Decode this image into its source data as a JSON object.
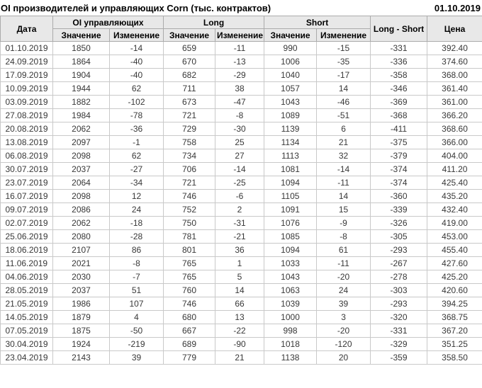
{
  "header": {
    "title": "OI производителей и управляющих Corn (тыс. контрактов)",
    "report_date": "01.10.2019"
  },
  "colors": {
    "positive_change": "#008000",
    "negative_change": "#cc0000",
    "header_background": "#e8e8e8",
    "cell_border": "#c9c9c9",
    "header_border": "#ababab",
    "value_text": "#383838"
  },
  "chart_data": {
    "type": "table",
    "title": "OI производителей и управляющих Corn (тыс. контрактов)",
    "columns": {
      "date": "Дата",
      "oi_group": "OI управляющих",
      "long_group": "Long",
      "short_group": "Short",
      "long_short": "Long - Short",
      "price": "Цена",
      "value": "Значение",
      "change": "Изменение"
    },
    "rows": [
      {
        "date": "01.10.2019",
        "oi_value": "1850",
        "oi_change": "-14",
        "long_value": "659",
        "long_change": "-11",
        "short_value": "990",
        "short_change": "-15",
        "long_short": "-331",
        "price": "392.40"
      },
      {
        "date": "24.09.2019",
        "oi_value": "1864",
        "oi_change": "-40",
        "long_value": "670",
        "long_change": "-13",
        "short_value": "1006",
        "short_change": "-35",
        "long_short": "-336",
        "price": "374.60"
      },
      {
        "date": "17.09.2019",
        "oi_value": "1904",
        "oi_change": "-40",
        "long_value": "682",
        "long_change": "-29",
        "short_value": "1040",
        "short_change": "-17",
        "long_short": "-358",
        "price": "368.00"
      },
      {
        "date": "10.09.2019",
        "oi_value": "1944",
        "oi_change": "62",
        "long_value": "711",
        "long_change": "38",
        "short_value": "1057",
        "short_change": "14",
        "long_short": "-346",
        "price": "361.40"
      },
      {
        "date": "03.09.2019",
        "oi_value": "1882",
        "oi_change": "-102",
        "long_value": "673",
        "long_change": "-47",
        "short_value": "1043",
        "short_change": "-46",
        "long_short": "-369",
        "price": "361.00"
      },
      {
        "date": "27.08.2019",
        "oi_value": "1984",
        "oi_change": "-78",
        "long_value": "721",
        "long_change": "-8",
        "short_value": "1089",
        "short_change": "-51",
        "long_short": "-368",
        "price": "366.20"
      },
      {
        "date": "20.08.2019",
        "oi_value": "2062",
        "oi_change": "-36",
        "long_value": "729",
        "long_change": "-30",
        "short_value": "1139",
        "short_change": "6",
        "long_short": "-411",
        "price": "368.60"
      },
      {
        "date": "13.08.2019",
        "oi_value": "2097",
        "oi_change": "-1",
        "long_value": "758",
        "long_change": "25",
        "short_value": "1134",
        "short_change": "21",
        "long_short": "-375",
        "price": "366.00"
      },
      {
        "date": "06.08.2019",
        "oi_value": "2098",
        "oi_change": "62",
        "long_value": "734",
        "long_change": "27",
        "short_value": "1113",
        "short_change": "32",
        "long_short": "-379",
        "price": "404.00"
      },
      {
        "date": "30.07.2019",
        "oi_value": "2037",
        "oi_change": "-27",
        "long_value": "706",
        "long_change": "-14",
        "short_value": "1081",
        "short_change": "-14",
        "long_short": "-374",
        "price": "411.20"
      },
      {
        "date": "23.07.2019",
        "oi_value": "2064",
        "oi_change": "-34",
        "long_value": "721",
        "long_change": "-25",
        "short_value": "1094",
        "short_change": "-11",
        "long_short": "-374",
        "price": "425.40"
      },
      {
        "date": "16.07.2019",
        "oi_value": "2098",
        "oi_change": "12",
        "long_value": "746",
        "long_change": "-6",
        "short_value": "1105",
        "short_change": "14",
        "long_short": "-360",
        "price": "435.20"
      },
      {
        "date": "09.07.2019",
        "oi_value": "2086",
        "oi_change": "24",
        "long_value": "752",
        "long_change": "2",
        "short_value": "1091",
        "short_change": "15",
        "long_short": "-339",
        "price": "432.40"
      },
      {
        "date": "02.07.2019",
        "oi_value": "2062",
        "oi_change": "-18",
        "long_value": "750",
        "long_change": "-31",
        "short_value": "1076",
        "short_change": "-9",
        "long_short": "-326",
        "price": "419.00"
      },
      {
        "date": "25.06.2019",
        "oi_value": "2080",
        "oi_change": "-28",
        "long_value": "781",
        "long_change": "-21",
        "short_value": "1085",
        "short_change": "-8",
        "long_short": "-305",
        "price": "453.00"
      },
      {
        "date": "18.06.2019",
        "oi_value": "2107",
        "oi_change": "86",
        "long_value": "801",
        "long_change": "36",
        "short_value": "1094",
        "short_change": "61",
        "long_short": "-293",
        "price": "455.40"
      },
      {
        "date": "11.06.2019",
        "oi_value": "2021",
        "oi_change": "-8",
        "long_value": "765",
        "long_change": "1",
        "short_value": "1033",
        "short_change": "-11",
        "long_short": "-267",
        "price": "427.60"
      },
      {
        "date": "04.06.2019",
        "oi_value": "2030",
        "oi_change": "-7",
        "long_value": "765",
        "long_change": "5",
        "short_value": "1043",
        "short_change": "-20",
        "long_short": "-278",
        "price": "425.20"
      },
      {
        "date": "28.05.2019",
        "oi_value": "2037",
        "oi_change": "51",
        "long_value": "760",
        "long_change": "14",
        "short_value": "1063",
        "short_change": "24",
        "long_short": "-303",
        "price": "420.60"
      },
      {
        "date": "21.05.2019",
        "oi_value": "1986",
        "oi_change": "107",
        "long_value": "746",
        "long_change": "66",
        "short_value": "1039",
        "short_change": "39",
        "long_short": "-293",
        "price": "394.25"
      },
      {
        "date": "14.05.2019",
        "oi_value": "1879",
        "oi_change": "4",
        "long_value": "680",
        "long_change": "13",
        "short_value": "1000",
        "short_change": "3",
        "long_short": "-320",
        "price": "368.75"
      },
      {
        "date": "07.05.2019",
        "oi_value": "1875",
        "oi_change": "-50",
        "long_value": "667",
        "long_change": "-22",
        "short_value": "998",
        "short_change": "-20",
        "long_short": "-331",
        "price": "367.20"
      },
      {
        "date": "30.04.2019",
        "oi_value": "1924",
        "oi_change": "-219",
        "long_value": "689",
        "long_change": "-90",
        "short_value": "1018",
        "short_change": "-120",
        "long_short": "-329",
        "price": "351.25"
      },
      {
        "date": "23.04.2019",
        "oi_value": "2143",
        "oi_change": "39",
        "long_value": "779",
        "long_change": "21",
        "short_value": "1138",
        "short_change": "20",
        "long_short": "-359",
        "price": "358.50"
      }
    ]
  }
}
